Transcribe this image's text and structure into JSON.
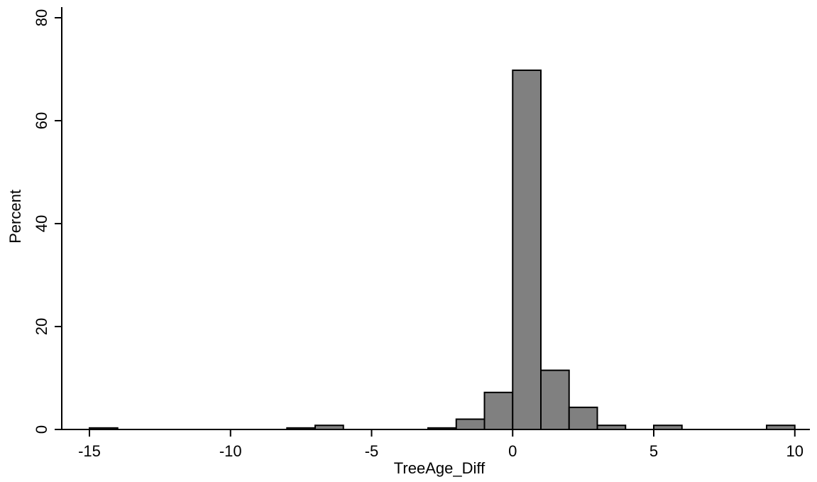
{
  "chart_data": {
    "type": "bar",
    "xlabel": "TreeAge_Diff",
    "ylabel": "Percent",
    "xlim": [
      -16,
      10.5
    ],
    "ylim": [
      0,
      80
    ],
    "x_ticks": [
      -15,
      -10,
      -5,
      0,
      5,
      10
    ],
    "y_ticks": [
      0,
      20,
      40,
      60,
      80
    ],
    "bin_width": 1,
    "bins": [
      {
        "start": -15,
        "value": 0.3
      },
      {
        "start": -8,
        "value": 0.3
      },
      {
        "start": -7,
        "value": 0.8
      },
      {
        "start": -3,
        "value": 0.3
      },
      {
        "start": -2,
        "value": 2.0
      },
      {
        "start": -1,
        "value": 7.2
      },
      {
        "start": 0,
        "value": 69.8
      },
      {
        "start": 1,
        "value": 11.5
      },
      {
        "start": 2,
        "value": 4.3
      },
      {
        "start": 3,
        "value": 0.8
      },
      {
        "start": 5,
        "value": 0.8
      },
      {
        "start": 9,
        "value": 0.8
      }
    ],
    "grid": false,
    "bar_color": "#808080",
    "bar_edge_color": "#000000"
  }
}
